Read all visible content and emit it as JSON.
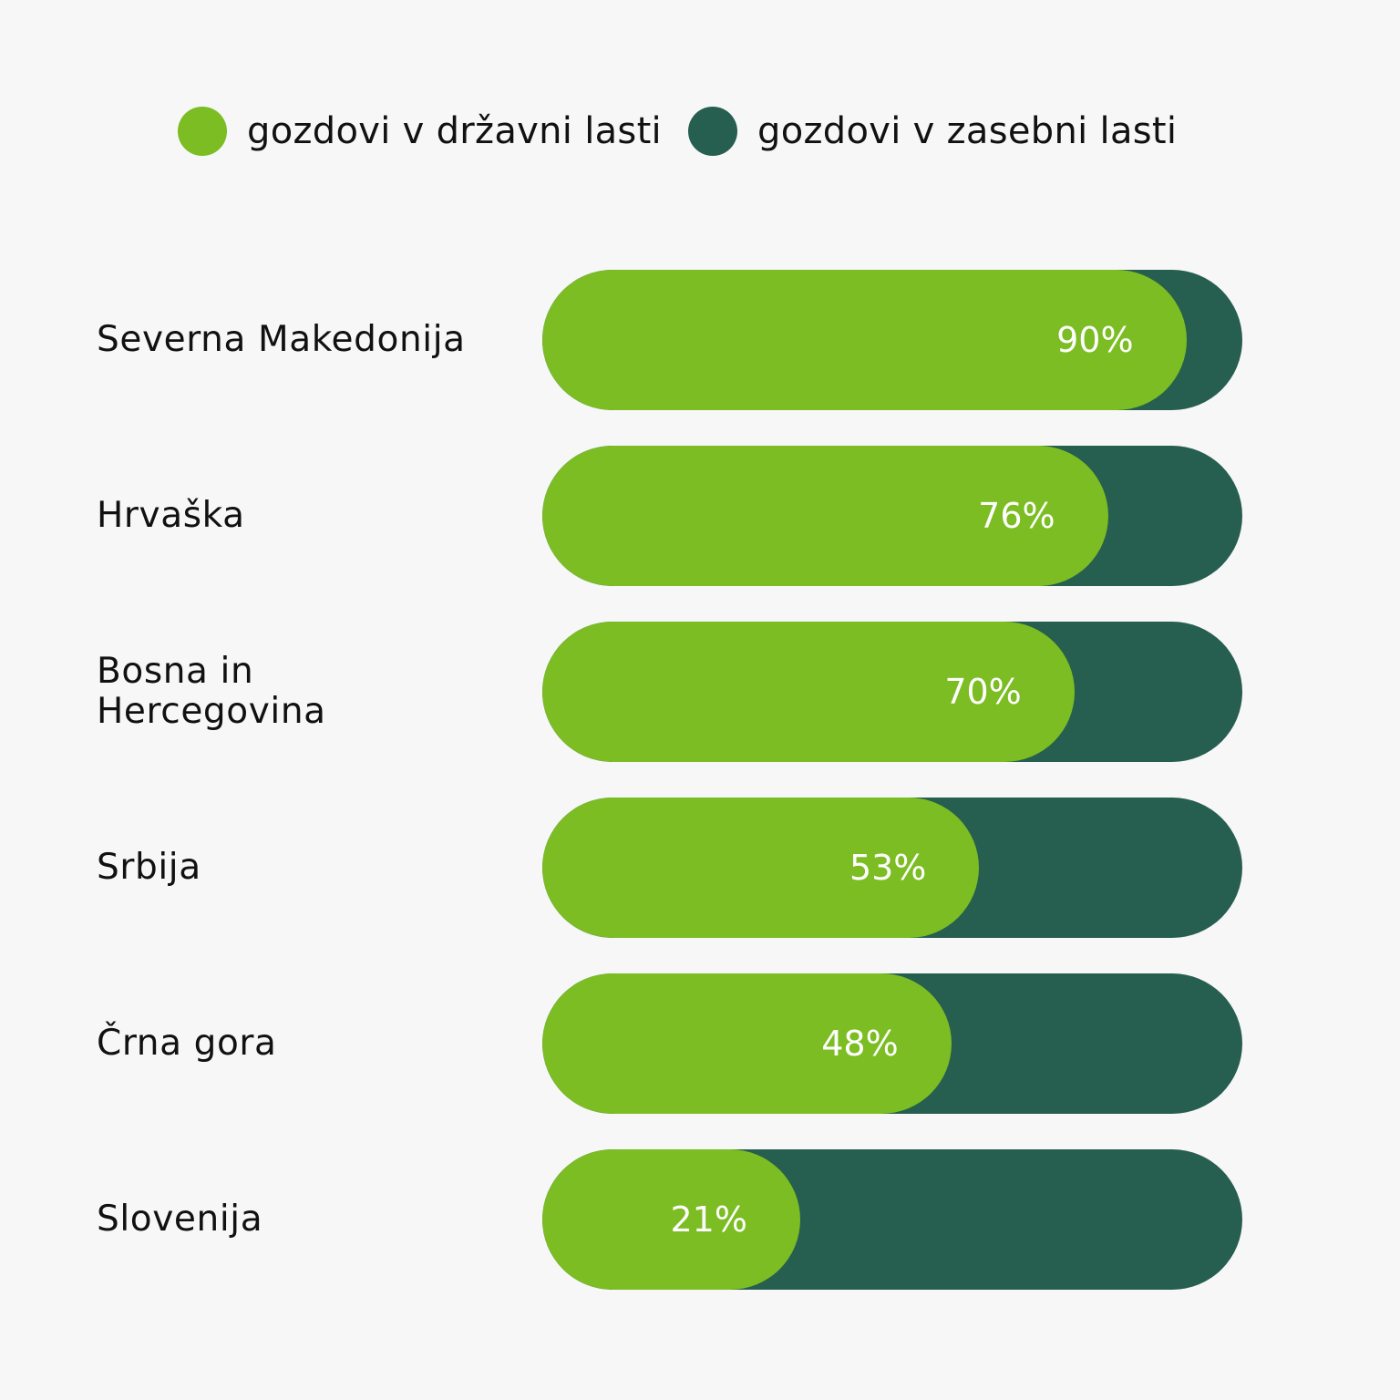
{
  "colors": {
    "state": "#7bbd22",
    "private": "#265e4f",
    "background": "#f7f7f7"
  },
  "legend": [
    {
      "label": "gozdovi v državni lasti",
      "color": "#7bbd22"
    },
    {
      "label": "gozdovi v zasebni lasti",
      "color": "#265e4f"
    }
  ],
  "chart_data": {
    "type": "bar",
    "orientation": "horizontal",
    "stacked": true,
    "categories": [
      "Severna Makedonija",
      "Hrvaška",
      "Bosna in Hercegovina",
      "Srbija",
      "Črna gora",
      "Slovenija"
    ],
    "series": [
      {
        "name": "gozdovi v državni lasti",
        "values": [
          90,
          76,
          70,
          53,
          48,
          21
        ]
      },
      {
        "name": "gozdovi v zasebni lasti",
        "values": [
          10,
          24,
          30,
          47,
          52,
          79
        ]
      }
    ],
    "data_labels": [
      "90%",
      "76%",
      "70%",
      "53%",
      "48%",
      "21%"
    ],
    "xlim": [
      0,
      100
    ],
    "grid": false,
    "legend_position": "top"
  }
}
